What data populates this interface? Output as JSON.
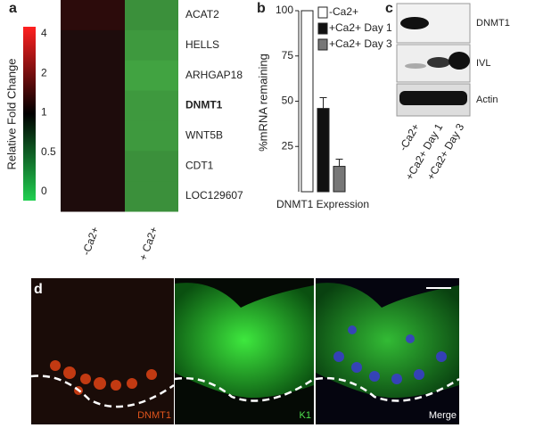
{
  "chart_data": [
    {
      "type": "heatmap",
      "label": "a",
      "colorbar_label": "Relative Fold Change",
      "colorbar_ticks": [
        4,
        2,
        1,
        0.5,
        0
      ],
      "rows": [
        "ACAT2",
        "HELLS",
        "ARHGAP18",
        "DNMT1",
        "WNT5B",
        "CDT1",
        "LOC129607"
      ],
      "columns": [
        "-Ca2+",
        "+ Ca2+"
      ],
      "values": [
        [
          1.1,
          0.35
        ],
        [
          1,
          0.3
        ],
        [
          1,
          0.25
        ],
        [
          1,
          0.3
        ],
        [
          1,
          0.3
        ],
        [
          1,
          0.35
        ],
        [
          1,
          0.35
        ]
      ]
    },
    {
      "type": "bar",
      "label": "b",
      "ylabel": "%mRNA remaining",
      "categories": [
        "DNMT1 Expression"
      ],
      "ylim": [
        0,
        100
      ],
      "yticks": [
        25,
        50,
        75,
        100
      ],
      "series": [
        {
          "name": "-Ca2+",
          "color": "#ffffff",
          "values": [
            100
          ]
        },
        {
          "name": "+Ca2+ Day 1",
          "color": "#111111",
          "values": [
            46
          ],
          "errors": [
            6
          ]
        },
        {
          "name": "+Ca2+ Day 3",
          "color": "#777777",
          "values": [
            14
          ],
          "errors": [
            4
          ]
        }
      ]
    }
  ],
  "blot": {
    "label": "c",
    "proteins": [
      "DNMT1",
      "IVL",
      "Actin"
    ],
    "lanes": [
      "-Ca2+",
      "+Ca2+ Day 1",
      "+Ca2+ Day 3"
    ]
  },
  "micrograph": {
    "label": "d",
    "channels": [
      "DNMT1",
      "K1",
      "Merge"
    ]
  }
}
